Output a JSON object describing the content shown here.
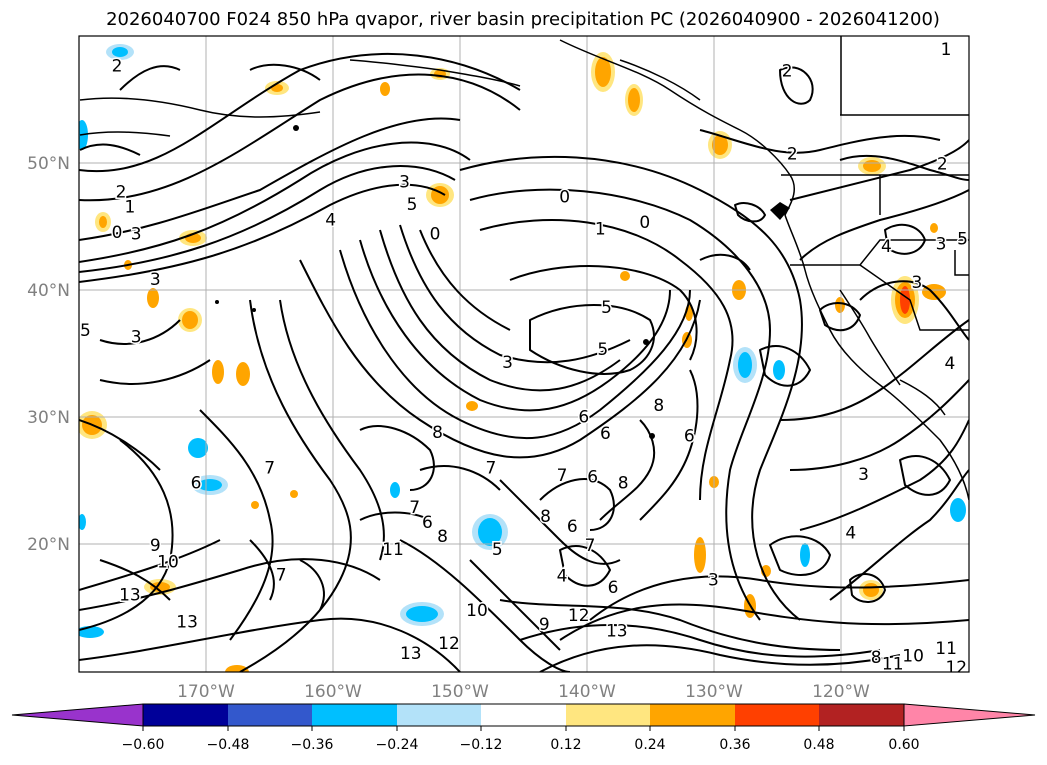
{
  "title": "2026040700 F024 850 hPa qvapor, river basin precipitation PC (2026040900 - 2026041200)",
  "map": {
    "lon_range": [
      -180,
      -110
    ],
    "lat_range": [
      10,
      60
    ],
    "lon_ticks": [
      {
        "value": -170,
        "label": "170°W"
      },
      {
        "value": -160,
        "label": "160°W"
      },
      {
        "value": -150,
        "label": "150°W"
      },
      {
        "value": -140,
        "label": "140°W"
      },
      {
        "value": -130,
        "label": "130°W"
      },
      {
        "value": -120,
        "label": "120°W"
      }
    ],
    "lat_ticks": [
      {
        "value": 20,
        "label": "20°N"
      },
      {
        "value": 30,
        "label": "30°N"
      },
      {
        "value": 40,
        "label": "40°N"
      },
      {
        "value": 50,
        "label": "50°N"
      }
    ],
    "contour_labels": [
      {
        "text": "2",
        "lon": -177,
        "lat": 57.6
      },
      {
        "text": "2",
        "lon": -176.7,
        "lat": 47.7
      },
      {
        "text": "1",
        "lon": -176,
        "lat": 46.5
      },
      {
        "text": "0",
        "lon": -177,
        "lat": 44.5
      },
      {
        "text": "3",
        "lon": -175.5,
        "lat": 44.4
      },
      {
        "text": "3",
        "lon": -174,
        "lat": 40.8
      },
      {
        "text": "5",
        "lon": -179.5,
        "lat": 36.8
      },
      {
        "text": "3",
        "lon": -175.5,
        "lat": 36.3
      },
      {
        "text": "3",
        "lon": -154.4,
        "lat": 48.5
      },
      {
        "text": "5",
        "lon": -153.8,
        "lat": 46.7
      },
      {
        "text": "4",
        "lon": -160.2,
        "lat": 45.5
      },
      {
        "text": "0",
        "lon": -152,
        "lat": 44.4
      },
      {
        "text": "0",
        "lon": -141.8,
        "lat": 47.3
      },
      {
        "text": "1",
        "lon": -139,
        "lat": 44.8
      },
      {
        "text": "0",
        "lon": -135.5,
        "lat": 45.3
      },
      {
        "text": "5",
        "lon": -138.5,
        "lat": 38.6
      },
      {
        "text": "5",
        "lon": -138.8,
        "lat": 35.3
      },
      {
        "text": "3",
        "lon": -146.3,
        "lat": 34.3
      },
      {
        "text": "6",
        "lon": -140.3,
        "lat": 30
      },
      {
        "text": "6",
        "lon": -138.6,
        "lat": 28.7
      },
      {
        "text": "8",
        "lon": -151.8,
        "lat": 28.8
      },
      {
        "text": "7",
        "lon": -147.6,
        "lat": 26
      },
      {
        "text": "7",
        "lon": -153.6,
        "lat": 22.9
      },
      {
        "text": "7",
        "lon": -142,
        "lat": 25.4
      },
      {
        "text": "6",
        "lon": -139.6,
        "lat": 25.3
      },
      {
        "text": "8",
        "lon": -137.2,
        "lat": 24.8
      },
      {
        "text": "8",
        "lon": -134.4,
        "lat": 30.9
      },
      {
        "text": "6",
        "lon": -132,
        "lat": 28.5
      },
      {
        "text": "8",
        "lon": -143.3,
        "lat": 22.2
      },
      {
        "text": "6",
        "lon": -141.2,
        "lat": 21.4
      },
      {
        "text": "6",
        "lon": -152.6,
        "lat": 21.7
      },
      {
        "text": "8",
        "lon": -151.4,
        "lat": 20.6
      },
      {
        "text": "7",
        "lon": -165,
        "lat": 26
      },
      {
        "text": "6",
        "lon": -170.8,
        "lat": 24.8
      },
      {
        "text": "5",
        "lon": -147.1,
        "lat": 19.6
      },
      {
        "text": "7",
        "lon": -139.8,
        "lat": 19.9
      },
      {
        "text": "4",
        "lon": -142,
        "lat": 17.5
      },
      {
        "text": "6",
        "lon": -138,
        "lat": 16.6
      },
      {
        "text": "7",
        "lon": -164.1,
        "lat": 17.6
      },
      {
        "text": "11",
        "lon": -155.3,
        "lat": 19.6
      },
      {
        "text": "9",
        "lon": -174,
        "lat": 19.9
      },
      {
        "text": "10",
        "lon": -173,
        "lat": 18.6
      },
      {
        "text": "13",
        "lon": -171.5,
        "lat": 13.9
      },
      {
        "text": "13",
        "lon": -176,
        "lat": 16
      },
      {
        "text": "10",
        "lon": -148.7,
        "lat": 14.8
      },
      {
        "text": "9",
        "lon": -143.4,
        "lat": 13.7
      },
      {
        "text": "12",
        "lon": -140.7,
        "lat": 14.4
      },
      {
        "text": "13",
        "lon": -137.7,
        "lat": 13.2
      },
      {
        "text": "12",
        "lon": -150.9,
        "lat": 12.2
      },
      {
        "text": "13",
        "lon": -153.9,
        "lat": 11.4
      },
      {
        "text": "3",
        "lon": -130.1,
        "lat": 17.2
      },
      {
        "text": "3",
        "lon": -118.3,
        "lat": 25.5
      },
      {
        "text": "4",
        "lon": -119.3,
        "lat": 20.9
      },
      {
        "text": "8",
        "lon": -117.3,
        "lat": 11.1
      },
      {
        "text": "11",
        "lon": -116,
        "lat": 10.6
      },
      {
        "text": "10",
        "lon": -114.4,
        "lat": 11.2
      },
      {
        "text": "11",
        "lon": -111.8,
        "lat": 11.8
      },
      {
        "text": "12",
        "lon": -111,
        "lat": 10.3
      },
      {
        "text": "2",
        "lon": -124.3,
        "lat": 57.2
      },
      {
        "text": "2",
        "lon": -123.9,
        "lat": 50.7
      },
      {
        "text": "2",
        "lon": -112.1,
        "lat": 49.9
      },
      {
        "text": "1",
        "lon": -111.8,
        "lat": 58.9
      },
      {
        "text": "4",
        "lon": -116.5,
        "lat": 43.4
      },
      {
        "text": "3",
        "lon": -112.2,
        "lat": 43.6
      },
      {
        "text": "3",
        "lon": -114.1,
        "lat": 40.6
      },
      {
        "text": "5",
        "lon": -110.5,
        "lat": 44
      },
      {
        "text": "4",
        "lon": -111.5,
        "lat": 34.2
      }
    ]
  },
  "colorbar": {
    "ticks": [
      "−0.60",
      "−0.48",
      "−0.36",
      "−0.24",
      "−0.12",
      "0.12",
      "0.24",
      "0.36",
      "0.48",
      "0.60"
    ],
    "colors": [
      "#9933cc",
      "#000099",
      "#3358cc",
      "#00bfff",
      "#b3e2f9",
      "#ffffff",
      "#ffe680",
      "#ffa500",
      "#ff4000",
      "#b22222",
      "#ff85a8"
    ]
  }
}
